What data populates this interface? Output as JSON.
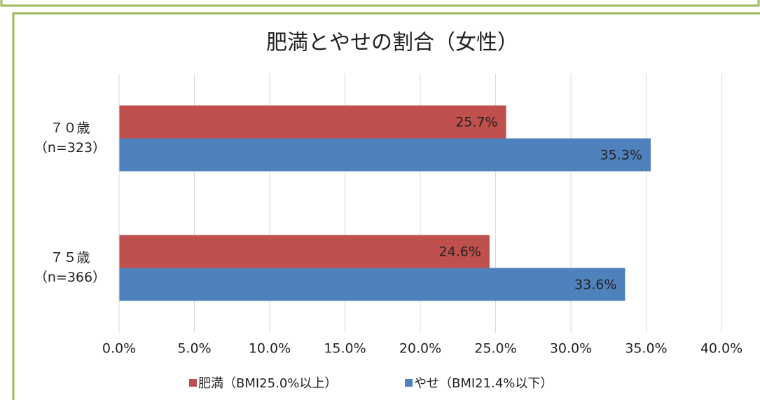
{
  "chart_data": {
    "type": "hbar",
    "title": "肥満とやせの割合（女性）",
    "categories": [
      [
        "７０歳",
        "（n=323）"
      ],
      [
        "７５歳",
        "（n=366）"
      ]
    ],
    "series": [
      {
        "name": "肥満（BMI25.0%以上）",
        "color": "#c0504d",
        "values": [
          25.7,
          24.6
        ],
        "value_labels": [
          "25.7%",
          "24.6%"
        ]
      },
      {
        "name": "やせ（BMI21.4%以下）",
        "color": "#4f81bd",
        "values": [
          35.3,
          33.6
        ],
        "value_labels": [
          "35.3%",
          "33.6%"
        ]
      }
    ],
    "xlim": [
      0,
      40
    ],
    "xticks": [
      {
        "value": 0,
        "label": "0.0%"
      },
      {
        "value": 5,
        "label": "5.0%"
      },
      {
        "value": 10,
        "label": "10.0%"
      },
      {
        "value": 15,
        "label": "15.0%"
      },
      {
        "value": 20,
        "label": "20.0%"
      },
      {
        "value": 25,
        "label": "25.0%"
      },
      {
        "value": 30,
        "label": "30.0%"
      },
      {
        "value": 35,
        "label": "35.0%"
      },
      {
        "value": 40,
        "label": "40.0%"
      }
    ],
    "grid": true,
    "legend": "bottom"
  }
}
